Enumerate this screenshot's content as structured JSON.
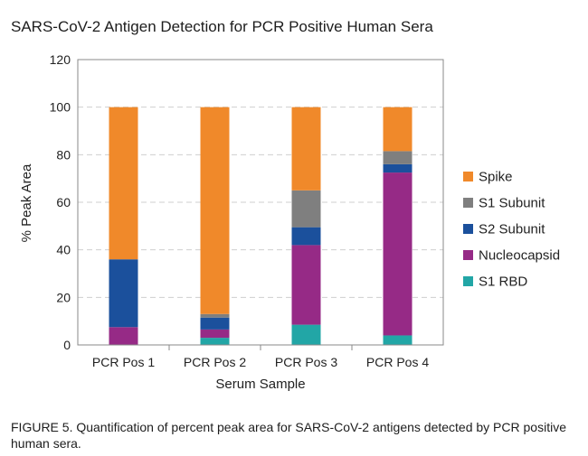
{
  "title": "SARS-CoV-2 Antigen Detection for PCR Positive Human Sera",
  "caption": "FIGURE 5. Quantification of percent peak area for SARS-CoV-2 antigens detected by PCR positive human sera.",
  "chart_data": {
    "type": "bar",
    "stacked": true,
    "title": "SARS-CoV-2 Antigen Detection for PCR Positive Human Sera",
    "xlabel": "Serum Sample",
    "ylabel": "% Peak Area",
    "ylim": [
      0,
      120
    ],
    "yticks": [
      0,
      20,
      40,
      60,
      80,
      100,
      120
    ],
    "grid": "horizontal dashed",
    "legend_position": "right",
    "categories": [
      "PCR Pos 1",
      "PCR Pos 2",
      "PCR Pos 3",
      "PCR Pos 4"
    ],
    "series": [
      {
        "name": "S1 RBD",
        "color": "#22a6a6",
        "values": [
          0,
          3,
          8.5,
          4
        ]
      },
      {
        "name": "Nucleocapsid",
        "color": "#962a86",
        "values": [
          7.5,
          3.5,
          33.5,
          68.5
        ]
      },
      {
        "name": "S2 Subunit",
        "color": "#1b509c",
        "values": [
          28.5,
          5,
          7.5,
          3.5
        ]
      },
      {
        "name": "S1 Subunit",
        "color": "#7f7f7f",
        "values": [
          0,
          1.5,
          15.5,
          5.5
        ]
      },
      {
        "name": "Spike",
        "color": "#f0892a",
        "values": [
          64,
          87,
          35,
          18.5
        ]
      }
    ],
    "legend_order": [
      "Spike",
      "S1 Subunit",
      "S2 Subunit",
      "Nucleocapsid",
      "S1 RBD"
    ]
  }
}
